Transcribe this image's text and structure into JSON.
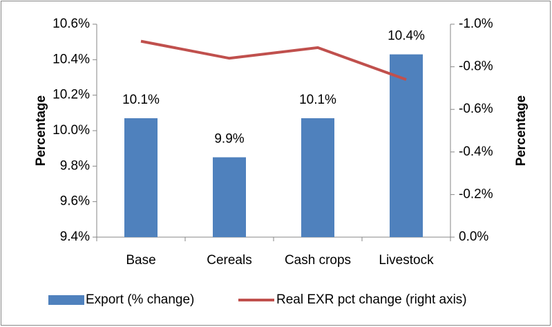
{
  "chart_data": {
    "type": "bar-line",
    "categories": [
      "Base",
      "Cereals",
      "Cash crops",
      "Livestock"
    ],
    "series": [
      {
        "name": "Export (% change)",
        "type": "bar",
        "color": "#4f81bd",
        "values": [
          10.07,
          9.85,
          10.07,
          10.43
        ],
        "value_labels": [
          "10.1%",
          "9.9%",
          "10.1%",
          "10.4%"
        ]
      },
      {
        "name": "Real EXR pct change (right axis)",
        "type": "line",
        "axis": "y2",
        "color": "#c0504d",
        "values": [
          -0.92,
          -0.84,
          -0.89,
          -0.74
        ]
      }
    ],
    "ylabel": "Percentage",
    "y2label": "Percentage",
    "ylim": [
      9.4,
      10.6
    ],
    "yticks": [
      {
        "value": 9.4,
        "label": "9.4%"
      },
      {
        "value": 9.6,
        "label": "9.6%"
      },
      {
        "value": 9.8,
        "label": "9.8%"
      },
      {
        "value": 10.0,
        "label": "10.0%"
      },
      {
        "value": 10.2,
        "label": "10.2%"
      },
      {
        "value": 10.4,
        "label": "10.4%"
      },
      {
        "value": 10.6,
        "label": "10.6%"
      }
    ],
    "y2lim": [
      0,
      -1.0
    ],
    "y2ticks": [
      {
        "value": 0,
        "label": "0.0%"
      },
      {
        "value": -0.2,
        "label": "-0.2%"
      },
      {
        "value": -0.4,
        "label": "-0.4%"
      },
      {
        "value": -0.6,
        "label": "-0.6%"
      },
      {
        "value": -0.8,
        "label": "-0.8%"
      },
      {
        "value": -1.0,
        "label": "-1.0%"
      }
    ],
    "legend": "bottom",
    "grid": false
  }
}
